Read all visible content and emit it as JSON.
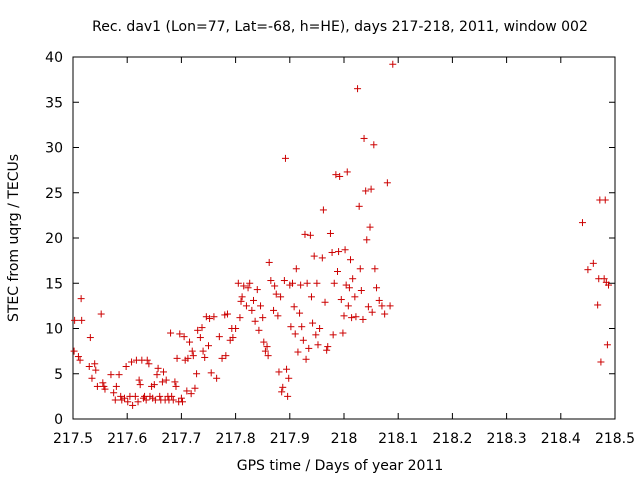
{
  "chart_data": {
    "type": "scatter",
    "title": "Rec. dav1 (Lon=77, Lat=-68, h=HE), days 217-218, 2011, window 002",
    "xlabel": "GPS time / Days of year 2011",
    "ylabel": "STEC from uqrg / TECUs",
    "xlim": [
      217.5,
      218.5
    ],
    "ylim": [
      0,
      40
    ],
    "xticks": [
      217.5,
      217.6,
      217.7,
      217.8,
      217.9,
      218,
      218.1,
      218.2,
      218.3,
      218.4,
      218.5
    ],
    "xtick_labels": [
      "217.5",
      "217.6",
      "217.7",
      "217.8",
      "217.9",
      "218",
      "218.1",
      "218.2",
      "218.3",
      "218.4",
      "218.5"
    ],
    "yticks": [
      0,
      5,
      10,
      15,
      20,
      25,
      30,
      35,
      40
    ],
    "ytick_labels": [
      "0",
      "5",
      "10",
      "15",
      "20",
      "25",
      "30",
      "35",
      "40"
    ],
    "grid": false,
    "legend": "none",
    "marker": "plus",
    "color": "#cc0000",
    "points": [
      [
        217.502,
        7.5
      ],
      [
        217.503,
        10.9
      ],
      [
        217.51,
        6.9
      ],
      [
        217.513,
        6.5
      ],
      [
        217.515,
        13.3
      ],
      [
        217.516,
        10.9
      ],
      [
        217.53,
        5.8
      ],
      [
        217.532,
        9.0
      ],
      [
        217.535,
        4.5
      ],
      [
        217.54,
        6.1
      ],
      [
        217.542,
        5.4
      ],
      [
        217.545,
        3.6
      ],
      [
        217.552,
        11.6
      ],
      [
        217.555,
        4.0
      ],
      [
        217.557,
        3.6
      ],
      [
        217.559,
        3.3
      ],
      [
        217.57,
        4.9
      ],
      [
        217.575,
        2.9
      ],
      [
        217.578,
        2.1
      ],
      [
        217.58,
        3.6
      ],
      [
        217.585,
        4.9
      ],
      [
        217.588,
        2.5
      ],
      [
        217.59,
        2.1
      ],
      [
        217.595,
        2.3
      ],
      [
        217.598,
        5.8
      ],
      [
        217.601,
        1.9
      ],
      [
        217.605,
        2.5
      ],
      [
        217.608,
        6.3
      ],
      [
        217.61,
        1.5
      ],
      [
        217.615,
        2.5
      ],
      [
        217.617,
        6.5
      ],
      [
        217.62,
        1.9
      ],
      [
        217.622,
        4.3
      ],
      [
        217.624,
        3.8
      ],
      [
        217.627,
        6.5
      ],
      [
        217.63,
        2.3
      ],
      [
        217.632,
        2.5
      ],
      [
        217.635,
        2.1
      ],
      [
        217.637,
        6.5
      ],
      [
        217.64,
        6.1
      ],
      [
        217.642,
        2.5
      ],
      [
        217.645,
        3.6
      ],
      [
        217.647,
        2.3
      ],
      [
        217.65,
        3.8
      ],
      [
        217.652,
        2.1
      ],
      [
        217.655,
        4.9
      ],
      [
        217.657,
        5.6
      ],
      [
        217.66,
        2.5
      ],
      [
        217.662,
        2.1
      ],
      [
        217.665,
        4.1
      ],
      [
        217.667,
        5.2
      ],
      [
        217.67,
        2.1
      ],
      [
        217.672,
        4.3
      ],
      [
        217.675,
        2.5
      ],
      [
        217.677,
        2.1
      ],
      [
        217.68,
        9.5
      ],
      [
        217.682,
        2.5
      ],
      [
        217.685,
        2.1
      ],
      [
        217.688,
        4.1
      ],
      [
        217.69,
        3.6
      ],
      [
        217.692,
        6.7
      ],
      [
        217.695,
        1.9
      ],
      [
        217.697,
        9.4
      ],
      [
        217.7,
        2.3
      ],
      [
        217.702,
        1.9
      ],
      [
        217.705,
        9.1
      ],
      [
        217.707,
        6.5
      ],
      [
        217.71,
        3.1
      ],
      [
        217.712,
        6.7
      ],
      [
        217.715,
        8.5
      ],
      [
        217.718,
        2.8
      ],
      [
        217.72,
        7.5
      ],
      [
        217.722,
        7.0
      ],
      [
        217.725,
        3.4
      ],
      [
        217.728,
        5.0
      ],
      [
        217.73,
        9.8
      ],
      [
        217.735,
        9.0
      ],
      [
        217.738,
        10.1
      ],
      [
        217.74,
        7.5
      ],
      [
        217.743,
        6.8
      ],
      [
        217.746,
        11.3
      ],
      [
        217.75,
        8.1
      ],
      [
        217.752,
        11.1
      ],
      [
        217.755,
        5.1
      ],
      [
        217.76,
        11.3
      ],
      [
        217.765,
        4.5
      ],
      [
        217.77,
        9.1
      ],
      [
        217.775,
        6.7
      ],
      [
        217.78,
        11.5
      ],
      [
        217.782,
        7.0
      ],
      [
        217.785,
        11.6
      ],
      [
        217.79,
        8.7
      ],
      [
        217.793,
        10.0
      ],
      [
        217.795,
        9.0
      ],
      [
        217.8,
        10.0
      ],
      [
        217.805,
        15.0
      ],
      [
        217.808,
        11.2
      ],
      [
        217.81,
        13.0
      ],
      [
        217.812,
        13.5
      ],
      [
        217.815,
        14.7
      ],
      [
        217.82,
        12.5
      ],
      [
        217.823,
        14.5
      ],
      [
        217.826,
        15.0
      ],
      [
        217.83,
        12.0
      ],
      [
        217.833,
        13.1
      ],
      [
        217.836,
        10.8
      ],
      [
        217.84,
        14.3
      ],
      [
        217.843,
        9.8
      ],
      [
        217.846,
        12.5
      ],
      [
        217.85,
        11.2
      ],
      [
        217.852,
        8.5
      ],
      [
        217.855,
        7.5
      ],
      [
        217.858,
        8.0
      ],
      [
        217.86,
        7.0
      ],
      [
        217.862,
        17.3
      ],
      [
        217.865,
        15.3
      ],
      [
        217.87,
        12.0
      ],
      [
        217.872,
        14.7
      ],
      [
        217.875,
        13.8
      ],
      [
        217.878,
        11.4
      ],
      [
        217.88,
        5.2
      ],
      [
        217.883,
        13.5
      ],
      [
        217.885,
        3.0
      ],
      [
        217.887,
        3.5
      ],
      [
        217.89,
        15.3
      ],
      [
        217.892,
        28.8
      ],
      [
        217.894,
        5.5
      ],
      [
        217.896,
        2.5
      ],
      [
        217.898,
        4.5
      ],
      [
        217.9,
        14.8
      ],
      [
        217.902,
        10.2
      ],
      [
        217.905,
        15.0
      ],
      [
        217.908,
        12.4
      ],
      [
        217.91,
        9.4
      ],
      [
        217.912,
        16.6
      ],
      [
        217.915,
        7.4
      ],
      [
        217.918,
        11.7
      ],
      [
        217.92,
        14.8
      ],
      [
        217.922,
        10.2
      ],
      [
        217.925,
        8.7
      ],
      [
        217.928,
        20.4
      ],
      [
        217.93,
        6.6
      ],
      [
        217.932,
        15.0
      ],
      [
        217.935,
        7.8
      ],
      [
        217.938,
        20.3
      ],
      [
        217.94,
        13.5
      ],
      [
        217.942,
        10.6
      ],
      [
        217.945,
        18.0
      ],
      [
        217.948,
        9.3
      ],
      [
        217.95,
        15.0
      ],
      [
        217.952,
        8.2
      ],
      [
        217.955,
        10.0
      ],
      [
        217.96,
        17.8
      ],
      [
        217.962,
        23.1
      ],
      [
        217.965,
        12.9
      ],
      [
        217.968,
        7.6
      ],
      [
        217.97,
        8.0
      ],
      [
        217.975,
        20.5
      ],
      [
        217.978,
        18.4
      ],
      [
        217.98,
        9.3
      ],
      [
        217.982,
        15.0
      ],
      [
        217.985,
        27.0
      ],
      [
        217.988,
        16.3
      ],
      [
        217.99,
        18.5
      ],
      [
        217.992,
        26.8
      ],
      [
        217.995,
        13.2
      ],
      [
        217.998,
        9.5
      ],
      [
        218.0,
        11.4
      ],
      [
        218.002,
        18.7
      ],
      [
        218.004,
        14.8
      ],
      [
        218.006,
        27.3
      ],
      [
        218.008,
        12.5
      ],
      [
        218.01,
        14.5
      ],
      [
        218.012,
        17.6
      ],
      [
        218.014,
        11.2
      ],
      [
        218.016,
        15.5
      ],
      [
        218.02,
        13.5
      ],
      [
        218.022,
        11.3
      ],
      [
        218.025,
        36.5
      ],
      [
        218.028,
        23.5
      ],
      [
        218.03,
        16.6
      ],
      [
        218.032,
        14.2
      ],
      [
        218.035,
        11.0
      ],
      [
        218.037,
        31.0
      ],
      [
        218.04,
        25.2
      ],
      [
        218.042,
        19.8
      ],
      [
        218.045,
        12.4
      ],
      [
        218.048,
        21.2
      ],
      [
        218.05,
        25.4
      ],
      [
        218.052,
        11.8
      ],
      [
        218.055,
        30.3
      ],
      [
        218.057,
        16.6
      ],
      [
        218.06,
        14.5
      ],
      [
        218.065,
        13.1
      ],
      [
        218.07,
        12.5
      ],
      [
        218.075,
        11.6
      ],
      [
        218.08,
        26.1
      ],
      [
        218.085,
        12.5
      ],
      [
        218.09,
        39.2
      ],
      [
        218.44,
        21.7
      ],
      [
        218.45,
        16.5
      ],
      [
        218.46,
        17.2
      ],
      [
        218.468,
        12.6
      ],
      [
        218.47,
        15.5
      ],
      [
        218.472,
        24.2
      ],
      [
        218.474,
        6.3
      ],
      [
        218.48,
        15.5
      ],
      [
        218.482,
        24.2
      ],
      [
        218.484,
        15.1
      ],
      [
        218.486,
        8.2
      ],
      [
        218.488,
        14.8
      ]
    ]
  }
}
